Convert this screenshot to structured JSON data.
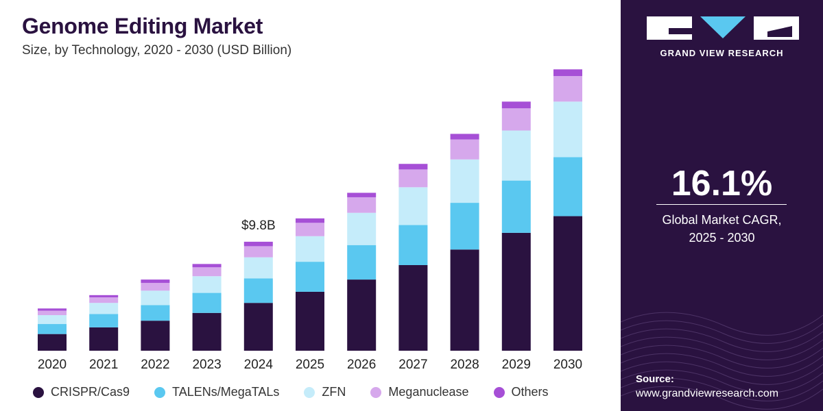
{
  "header": {
    "title": "Genome Editing Market",
    "subtitle": "Size, by Technology, 2020 - 2030 (USD Billion)"
  },
  "sidebar": {
    "brand": "GRAND VIEW RESEARCH",
    "cagr_value": "16.1%",
    "cagr_label_line1": "Global Market CAGR,",
    "cagr_label_line2": "2025 - 2030",
    "source_label": "Source:",
    "source_url": "www.grandviewresearch.com",
    "background_color": "#2a1240"
  },
  "legend": [
    {
      "label": "CRISPR/Cas9",
      "color": "#2a1240"
    },
    {
      "label": "TALENs/MegaTALs",
      "color": "#5ac8f0"
    },
    {
      "label": "ZFN",
      "color": "#c5ecfa"
    },
    {
      "label": "Meganuclease",
      "color": "#d6a8ec"
    },
    {
      "label": "Others",
      "color": "#a64fd6"
    }
  ],
  "chart_data": {
    "type": "bar",
    "stacked": true,
    "categories": [
      "2020",
      "2021",
      "2022",
      "2023",
      "2024",
      "2025",
      "2026",
      "2027",
      "2028",
      "2029",
      "2030"
    ],
    "series": [
      {
        "name": "CRISPR/Cas9",
        "color": "#2a1240",
        "values": [
          1.5,
          2.1,
          2.7,
          3.4,
          4.3,
          5.3,
          6.4,
          7.7,
          9.1,
          10.6,
          12.1
        ]
      },
      {
        "name": "TALENs/MegaTALs",
        "color": "#5ac8f0",
        "values": [
          0.9,
          1.2,
          1.4,
          1.8,
          2.2,
          2.7,
          3.1,
          3.6,
          4.2,
          4.7,
          5.3
        ]
      },
      {
        "name": "ZFN",
        "color": "#c5ecfa",
        "values": [
          0.8,
          1.0,
          1.3,
          1.5,
          1.9,
          2.3,
          2.9,
          3.4,
          3.9,
          4.5,
          5.0
        ]
      },
      {
        "name": "Meganuclease",
        "color": "#d6a8ec",
        "values": [
          0.4,
          0.5,
          0.7,
          0.8,
          1.0,
          1.2,
          1.4,
          1.6,
          1.8,
          2.0,
          2.3
        ]
      },
      {
        "name": "Others",
        "color": "#a64fd6",
        "values": [
          0.2,
          0.2,
          0.3,
          0.3,
          0.4,
          0.4,
          0.4,
          0.5,
          0.5,
          0.6,
          0.6
        ]
      }
    ],
    "annotations": [
      {
        "category": "2024",
        "text": "$9.8B"
      }
    ],
    "ylim": [
      0,
      25.5
    ],
    "grid": false,
    "legend_position": "bottom"
  }
}
